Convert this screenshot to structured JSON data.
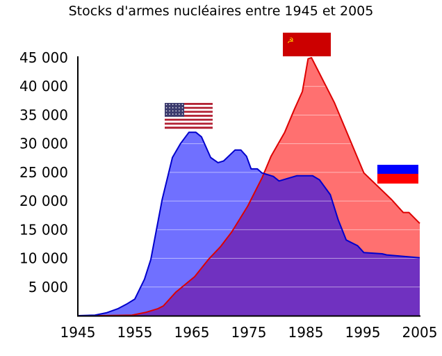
{
  "chart_data": {
    "type": "area",
    "title": "Stocks d'armes nucléaires entre 1945 et 2005",
    "xlabel": "",
    "ylabel": "",
    "xlim": [
      1945,
      2005
    ],
    "ylim": [
      0,
      45000
    ],
    "grid": true,
    "x_ticks": [
      "1945",
      "1955",
      "1965",
      "1975",
      "1985",
      "1995",
      "2005"
    ],
    "x_tick_values": [
      1945,
      1955,
      1965,
      1975,
      1985,
      1995,
      2005
    ],
    "y_ticks": [
      "5 000",
      "10 000",
      "15 000",
      "20 000",
      "25 000",
      "30 000",
      "35 000",
      "40 000",
      "45 000"
    ],
    "y_tick_values": [
      5000,
      10000,
      15000,
      20000,
      25000,
      30000,
      35000,
      40000,
      45000
    ],
    "legend": "flags placed near each series",
    "series": [
      {
        "name": "URSS / Russie",
        "flag": "ussr-russia",
        "color": "#dd0000",
        "fill": "#ff7070",
        "points": [
          [
            1945,
            0
          ],
          [
            1949,
            0
          ],
          [
            1954.5,
            100
          ],
          [
            1957,
            600
          ],
          [
            1959,
            1200
          ],
          [
            1960,
            1700
          ],
          [
            1962.2,
            4100
          ],
          [
            1965.5,
            6800
          ],
          [
            1967.9,
            9800
          ],
          [
            1970,
            12000
          ],
          [
            1972,
            14600
          ],
          [
            1974.8,
            19100
          ],
          [
            1977.3,
            24000
          ],
          [
            1978.9,
            27800
          ],
          [
            1981.3,
            32000
          ],
          [
            1983,
            36000
          ],
          [
            1984.4,
            39100
          ],
          [
            1985.4,
            44800
          ],
          [
            1986,
            45000
          ],
          [
            1990,
            37200
          ],
          [
            1995.2,
            24900
          ],
          [
            2000,
            20300
          ],
          [
            2002.1,
            18000
          ],
          [
            2003.1,
            18000
          ],
          [
            2005,
            16100
          ]
        ]
      },
      {
        "name": "États-Unis",
        "flag": "usa",
        "color": "#0000cc",
        "fill": "#0000ff",
        "points": [
          [
            1945,
            0
          ],
          [
            1948,
            100
          ],
          [
            1950,
            500
          ],
          [
            1952,
            1200
          ],
          [
            1953.7,
            2100
          ],
          [
            1955,
            2900
          ],
          [
            1956.7,
            6350
          ],
          [
            1957.8,
            9800
          ],
          [
            1959.8,
            20300
          ],
          [
            1961.6,
            27600
          ],
          [
            1963,
            30000
          ],
          [
            1964.5,
            32000
          ],
          [
            1965.7,
            32000
          ],
          [
            1966.7,
            31200
          ],
          [
            1968.3,
            27600
          ],
          [
            1969.6,
            26700
          ],
          [
            1970.6,
            27000
          ],
          [
            1972.6,
            28900
          ],
          [
            1973.6,
            28900
          ],
          [
            1974.6,
            27800
          ],
          [
            1975.4,
            25600
          ],
          [
            1976.5,
            25600
          ],
          [
            1977.3,
            24900
          ],
          [
            1979.3,
            24300
          ],
          [
            1980.3,
            23500
          ],
          [
            1983.4,
            24400
          ],
          [
            1986.2,
            24400
          ],
          [
            1987.4,
            23700
          ],
          [
            1989.3,
            21100
          ],
          [
            1990.7,
            16700
          ],
          [
            1992.1,
            13200
          ],
          [
            1994.1,
            12200
          ],
          [
            1995.2,
            11000
          ],
          [
            1998.4,
            10800
          ],
          [
            1999.2,
            10600
          ],
          [
            2005,
            10100
          ]
        ]
      }
    ]
  }
}
